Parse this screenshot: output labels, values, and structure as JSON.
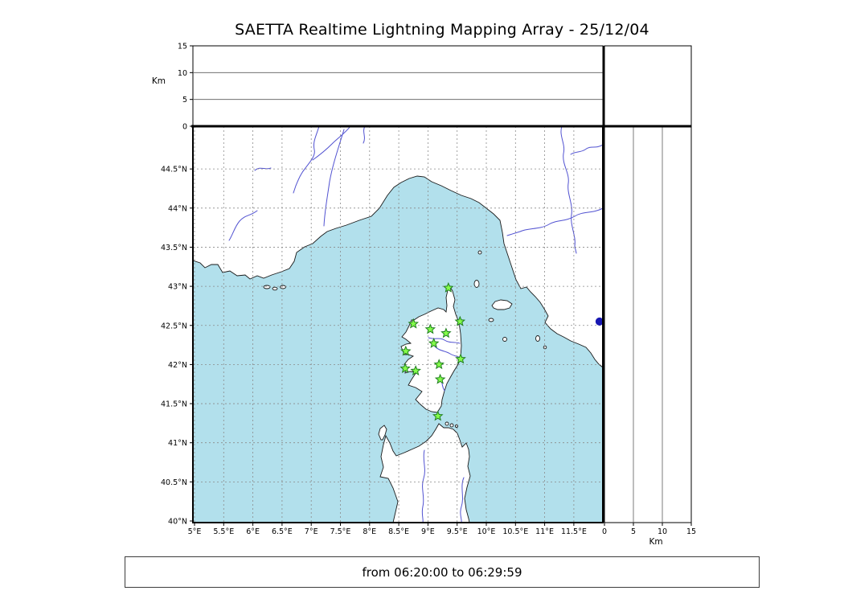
{
  "title": "SAETTA Realtime Lightning Mapping Array - 25/12/04",
  "footer": {
    "text": "from 06:20:00 to 06:29:59"
  },
  "colors": {
    "sea": "#b2e0ec",
    "land": "#ffffff",
    "coastline": "#1a1a1a",
    "river": "#5152d1",
    "grid": "#8a8a8a",
    "panel_grid": "#5a5a5a",
    "station_fill": "#84fb4a",
    "station_stroke": "#1f7d1f",
    "event": "#1717b2"
  },
  "map": {
    "lon_ticks": {
      "values": [
        5,
        5.5,
        6,
        6.5,
        7,
        7.5,
        8,
        8.5,
        9,
        9.5,
        10,
        10.5,
        11,
        11.5
      ],
      "labels": [
        "5°E",
        "5.5°E",
        "6°E",
        "6.5°E",
        "7°E",
        "7.5°E",
        "8°E",
        "8.5°E",
        "9°E",
        "9.5°E",
        "10°E",
        "10.5°E",
        "11°E",
        "11.5°E"
      ]
    },
    "lat_ticks": {
      "values": [
        40,
        40.5,
        41,
        41.5,
        42,
        42.5,
        43,
        43.5,
        44,
        44.5
      ],
      "labels": [
        "40°N",
        "40.5°N",
        "41°N",
        "41.5°N",
        "42°N",
        "42.5°N",
        "43°N",
        "43.5°N",
        "44°N",
        "44.5°N"
      ]
    }
  },
  "altitude": {
    "label": "Km",
    "tick_values": [
      0,
      5,
      10,
      15
    ],
    "tick_labels": [
      "0",
      "5",
      "10",
      "15"
    ],
    "max_km": 15
  },
  "stations": [
    {
      "lon": 9.35,
      "lat": 42.98
    },
    {
      "lon": 8.75,
      "lat": 42.52
    },
    {
      "lon": 9.04,
      "lat": 42.45
    },
    {
      "lon": 9.31,
      "lat": 42.4
    },
    {
      "lon": 9.55,
      "lat": 42.55
    },
    {
      "lon": 9.1,
      "lat": 42.27
    },
    {
      "lon": 8.62,
      "lat": 42.17
    },
    {
      "lon": 9.56,
      "lat": 42.07
    },
    {
      "lon": 8.61,
      "lat": 41.95
    },
    {
      "lon": 8.79,
      "lat": 41.92
    },
    {
      "lon": 9.19,
      "lat": 42.0
    },
    {
      "lon": 9.21,
      "lat": 41.81
    },
    {
      "lon": 9.17,
      "lat": 41.34
    }
  ],
  "events": [
    {
      "lon": 11.94,
      "lat": 42.55
    }
  ]
}
